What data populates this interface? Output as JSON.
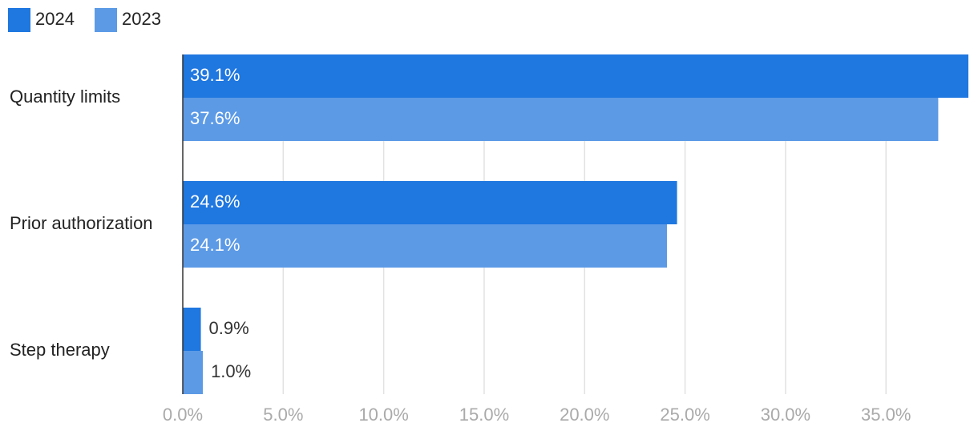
{
  "chart_data": {
    "type": "bar",
    "orientation": "horizontal",
    "categories": [
      "Quantity limits",
      "Prior authorization",
      "Step therapy"
    ],
    "series": [
      {
        "name": "2024",
        "color": "#1f77e0",
        "values": [
          39.1,
          24.6,
          0.9
        ],
        "value_labels": [
          "39.1%",
          "24.6%",
          "0.9%"
        ]
      },
      {
        "name": "2023",
        "color": "#5c9ae6",
        "values": [
          37.6,
          24.1,
          1.0
        ],
        "value_labels": [
          "37.6%",
          "24.1%",
          "1.0%"
        ]
      }
    ],
    "xlim": [
      0,
      39.1
    ],
    "xticks": [
      {
        "value": 0,
        "label": "0.0%"
      },
      {
        "value": 5,
        "label": "5.0%"
      },
      {
        "value": 10,
        "label": "10.0%"
      },
      {
        "value": 15,
        "label": "15.0%"
      },
      {
        "value": 20,
        "label": "20.0%"
      },
      {
        "value": 25,
        "label": "25.0%"
      },
      {
        "value": 30,
        "label": "30.0%"
      },
      {
        "value": 35,
        "label": "35.0%"
      }
    ],
    "grid": true,
    "legend": "top-left"
  }
}
